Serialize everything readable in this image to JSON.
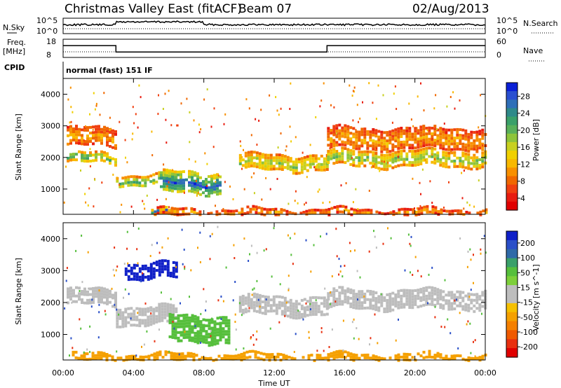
{
  "chart_data": [
    {
      "type": "line",
      "title": "Christmas Valley East (fitACF)",
      "beam": "Beam 07",
      "date": "02/Aug/2013",
      "panel_label": "N.Sky",
      "right_label": "N.Search",
      "left_ticks": [
        "10^5",
        "10^0"
      ],
      "right_ticks": [
        "10^5",
        "10^0"
      ]
    },
    {
      "type": "line",
      "panel_label": "Freq. [MHz]",
      "right_label": "Nave",
      "left_ticks": [
        "18",
        "8"
      ],
      "right_ticks": [
        "60",
        "0"
      ],
      "freq_segments": [
        {
          "x_start": 0.0,
          "x_end": 3.0,
          "value": 14.5
        },
        {
          "x_start": 3.0,
          "x_end": 15.0,
          "value": 11.0
        },
        {
          "x_start": 15.0,
          "x_end": 24.0,
          "value": 14.5
        }
      ]
    },
    {
      "type": "table",
      "panel_label": "CPID",
      "text": "normal (fast) 151 IF"
    },
    {
      "type": "heatmap",
      "ylabel": "Slant Range [km]",
      "y_ticks": [
        "1000",
        "2000",
        "3000",
        "4000"
      ],
      "ylim": [
        200,
        4500
      ],
      "colorbar_label": "Power [dB]",
      "colorbar_ticks": [
        "28",
        "24",
        "20",
        "16",
        "12",
        "8",
        "4"
      ],
      "colorbar_colors": [
        "#0a1fd6",
        "#2a4fd0",
        "#2f6fb8",
        "#2f8a8a",
        "#3aa06a",
        "#59b05a",
        "#8ec43a",
        "#c8d020",
        "#f0d000",
        "#f8b800",
        "#f89000",
        "#f06800",
        "#f04010",
        "#e81c10",
        "#e00000"
      ],
      "bands": [
        {
          "x_start": 0.2,
          "x_end": 3.0,
          "r_center": 2000,
          "r_width": 300,
          "power": 22
        },
        {
          "x_start": 0.2,
          "x_end": 3.0,
          "r_center": 2650,
          "r_width": 600,
          "power": 10
        },
        {
          "x_start": 3.0,
          "x_end": 6.5,
          "r_center": 1300,
          "r_width": 350,
          "power": 22
        },
        {
          "x_start": 5.5,
          "x_end": 9.0,
          "r_center": 1200,
          "r_width": 700,
          "power": 29
        },
        {
          "x_start": 10.0,
          "x_end": 15.0,
          "r_center": 1850,
          "r_width": 500,
          "power": 18
        },
        {
          "x_start": 15.0,
          "x_end": 24.0,
          "r_center": 2000,
          "r_width": 450,
          "power": 20
        },
        {
          "x_start": 15.0,
          "x_end": 24.0,
          "r_center": 2600,
          "r_width": 700,
          "power": 10
        },
        {
          "x_start": 5.0,
          "x_end": 6.5,
          "r_center": 280,
          "r_width": 180,
          "power": 28
        },
        {
          "x_start": 5.0,
          "x_end": 24.0,
          "r_center": 280,
          "r_width": 200,
          "power": 10
        }
      ]
    },
    {
      "type": "heatmap",
      "ylabel": "Slant Range [km]",
      "y_ticks": [
        "1000",
        "2000",
        "3000",
        "4000"
      ],
      "ylim": [
        200,
        4500
      ],
      "xlabel": "Time UT",
      "x_ticks": [
        "00:00",
        "04:00",
        "08:00",
        "12:00",
        "16:00",
        "20:00",
        "00:00"
      ],
      "xlim": [
        0,
        24
      ],
      "colorbar_label": "Velocity [m s^-1]",
      "colorbar_ticks": [
        "200",
        "100",
        "50",
        "15",
        "-15",
        "-50",
        "-100",
        "-200"
      ],
      "colorbar_colors": [
        "#1020c8",
        "#2a4fc8",
        "#2f6aa8",
        "#3aa06a",
        "#56bf3c",
        "#7dcf3a",
        "#bdbdbd",
        "#bdbdbd",
        "#f5c000",
        "#f5a000",
        "#f58000",
        "#f05a00",
        "#e83010",
        "#e00000"
      ],
      "bands": [
        {
          "x_start": 0.2,
          "x_end": 3.0,
          "r_center": 2200,
          "r_width": 450,
          "vel": 0
        },
        {
          "x_start": 3.0,
          "x_end": 6.5,
          "r_center": 1600,
          "r_width": 600,
          "vel": 0
        },
        {
          "x_start": 3.5,
          "x_end": 6.5,
          "r_center": 3000,
          "r_width": 500,
          "vel": 200
        },
        {
          "x_start": 6.0,
          "x_end": 9.5,
          "r_center": 1200,
          "r_width": 800,
          "vel": 40
        },
        {
          "x_start": 10.0,
          "x_end": 15.0,
          "r_center": 1900,
          "r_width": 600,
          "vel": 0
        },
        {
          "x_start": 15.0,
          "x_end": 24.0,
          "r_center": 2100,
          "r_width": 600,
          "vel": 0
        },
        {
          "x_start": 0.5,
          "x_end": 24.0,
          "r_center": 300,
          "r_width": 200,
          "vel": -40
        }
      ]
    }
  ]
}
